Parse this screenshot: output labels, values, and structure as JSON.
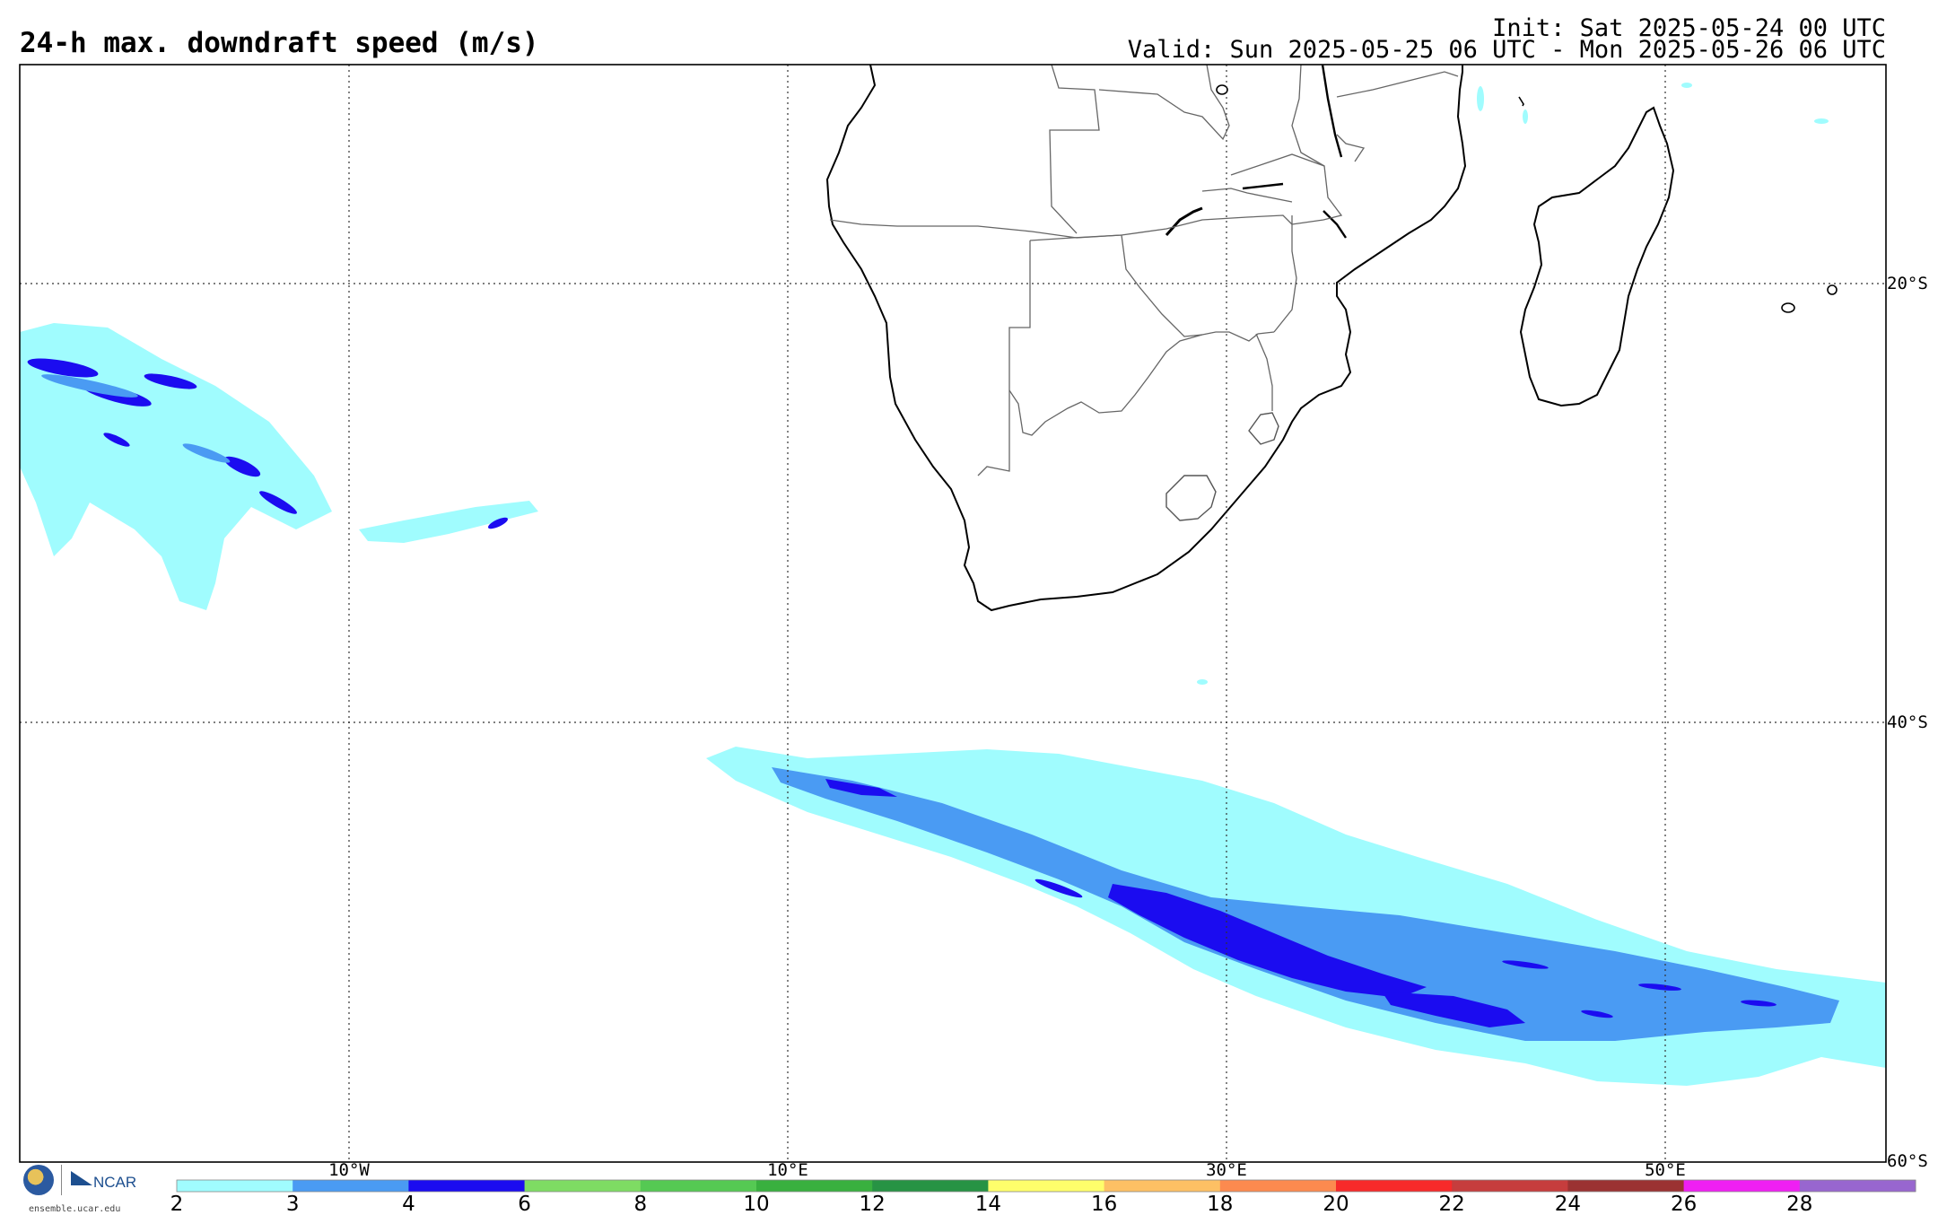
{
  "header": {
    "title": "24-h max. downdraft speed (m/s)",
    "init": "Init: Sat 2025-05-24 00 UTC",
    "valid": "Valid: Sun 2025-05-25 06 UTC - Mon 2025-05-26 06 UTC"
  },
  "map": {
    "lon_range": [
      -25,
      60
    ],
    "lat_range": [
      -60,
      -10
    ],
    "longitude_labels": [
      "10°W",
      "10°E",
      "30°E",
      "50°E"
    ],
    "latitude_labels": [
      "20°S",
      "40°S",
      "60°S"
    ],
    "gridlines": "dotted"
  },
  "colorbar": {
    "ticks": [
      "2",
      "3",
      "4",
      "6",
      "8",
      "10",
      "12",
      "14",
      "16",
      "18",
      "20",
      "22",
      "24",
      "26",
      "28"
    ],
    "colors": [
      "#a0fcfe",
      "#4a9bf3",
      "#1b0cf0",
      "#7edc63",
      "#55c953",
      "#39b03f",
      "#279344",
      "#fefe6b",
      "#fdc064",
      "#fc8a4f",
      "#f72a2a",
      "#c63d3d",
      "#9b3232",
      "#ef1ff3",
      "#9866cf"
    ]
  },
  "footer": {
    "org": "NCAR",
    "site": "ensemble.ucar.edu"
  }
}
